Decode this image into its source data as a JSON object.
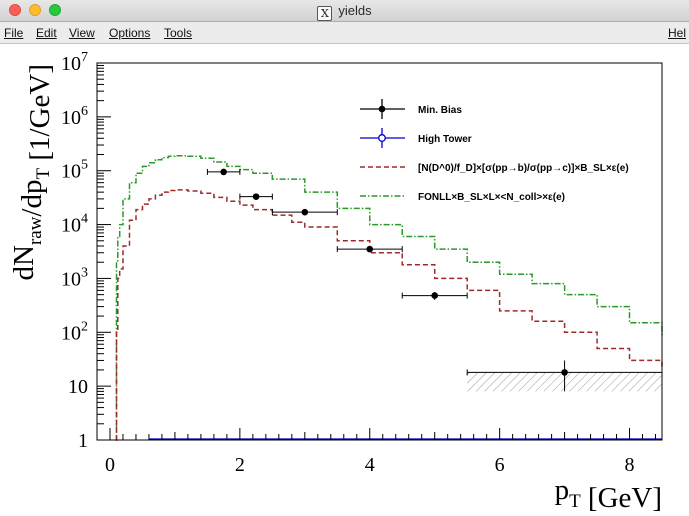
{
  "window": {
    "title": "yields",
    "title_icon": "x11-icon",
    "buttons": [
      "close",
      "minimize",
      "maximize"
    ]
  },
  "menu": {
    "file": "File",
    "edit": "Edit",
    "view": "View",
    "options": "Options",
    "tools": "Tools",
    "help": "Hel"
  },
  "chart_data": {
    "type": "line",
    "title": "",
    "xlabel": "p_T [GeV]",
    "ylabel": "dN_raw/dp_T [1/GeV]",
    "xlim": [
      -0.2,
      8.5
    ],
    "ylim": [
      1,
      10000000
    ],
    "yscale": "log",
    "x_ticks": [
      0,
      2,
      4,
      6,
      8
    ],
    "x_tick_labels": [
      "0",
      "2",
      "4",
      "6",
      "8"
    ],
    "y_ticks": [
      1,
      10,
      100,
      1000,
      10000,
      100000,
      1000000,
      10000000
    ],
    "y_tick_labels": [
      "1",
      "10",
      "10^2",
      "10^3",
      "10^4",
      "10^5",
      "10^6",
      "10^7"
    ],
    "grid": false,
    "legend_position": "top-right",
    "legend": [
      {
        "label": "Min. Bias",
        "style": "points-errorbars",
        "color": "#000000"
      },
      {
        "label": "High Tower",
        "style": "open-circle-errorbars",
        "color": "#0000cc"
      },
      {
        "label": "[N(D^0)/f_D]×[σ(pp→b)/σ(pp→c)]×B_SL×ε(e)",
        "style": "dashed",
        "color": "#9e2a2a"
      },
      {
        "label": "FONLL×B_SL×L×<N_coll>×ε(e)",
        "style": "dash-dot",
        "color": "#2a9a2a"
      }
    ],
    "series": [
      {
        "name": "Min. Bias",
        "points": [
          {
            "x": 1.75,
            "y": 95000,
            "xerr": 0.25,
            "ylo": 90000,
            "yhi": 100000
          },
          {
            "x": 2.25,
            "y": 33000,
            "xerr": 0.25,
            "ylo": 31000,
            "yhi": 35000
          },
          {
            "x": 3.0,
            "y": 17000,
            "xerr": 0.5,
            "ylo": 16000,
            "yhi": 18000
          },
          {
            "x": 4.0,
            "y": 3500,
            "xerr": 0.5,
            "ylo": 3250,
            "yhi": 3750
          },
          {
            "x": 5.0,
            "y": 480,
            "xerr": 0.5,
            "ylo": 400,
            "yhi": 560
          },
          {
            "x": 7.0,
            "y": 18,
            "xerr": 1.5,
            "ylo": 8,
            "yhi": 30
          }
        ]
      },
      {
        "name": "High Tower",
        "points": []
      },
      {
        "name": "[N(D^0)/f_D]×[σ(pp→b)/σ(pp→c)]×B_SL×ε(e)",
        "x": [
          0.09,
          0.1,
          0.12,
          0.15,
          0.2,
          0.3,
          0.4,
          0.5,
          0.6,
          0.7,
          0.8,
          0.9,
          1.0,
          1.2,
          1.4,
          1.6,
          1.8,
          2.0,
          2.2,
          2.5,
          2.8,
          3.0,
          3.5,
          4.0,
          4.5,
          5.0,
          5.5,
          6.0,
          6.5,
          7.0,
          7.5,
          8.0,
          8.5
        ],
        "y": [
          1,
          100,
          1000,
          1500,
          4000,
          12000,
          19000,
          24000,
          30000,
          35000,
          40000,
          43000,
          44000,
          42000,
          38000,
          32000,
          27000,
          23000,
          19000,
          15000,
          11000,
          9000,
          5000,
          3000,
          1800,
          1000,
          600,
          250,
          160,
          100,
          50,
          30,
          20
        ]
      },
      {
        "name": "FONLL×B_SL×L×<N_coll>×ε(e)",
        "x": [
          0.09,
          0.1,
          0.12,
          0.15,
          0.2,
          0.3,
          0.4,
          0.5,
          0.6,
          0.7,
          0.8,
          0.9,
          1.0,
          1.2,
          1.4,
          1.6,
          1.8,
          2.0,
          2.2,
          2.5,
          3.0,
          3.5,
          4.0,
          4.5,
          5.0,
          5.5,
          6.0,
          6.5,
          7.0,
          7.5,
          8.0,
          8.5
        ],
        "y": [
          1,
          2000,
          6000,
          10000,
          30000,
          60000,
          90000,
          120000,
          140000,
          160000,
          175000,
          185000,
          190000,
          185000,
          170000,
          145000,
          120000,
          105000,
          90000,
          70000,
          40000,
          20000,
          10000,
          6000,
          3500,
          2000,
          1200,
          800,
          500,
          300,
          150,
          80
        ]
      }
    ]
  },
  "colors": {
    "min_bias": "#000000",
    "high_tower": "#0000cc",
    "ratio_curve": "#9e2a2a",
    "fonll_curve": "#2a9a2a",
    "hatch": "#999999"
  }
}
